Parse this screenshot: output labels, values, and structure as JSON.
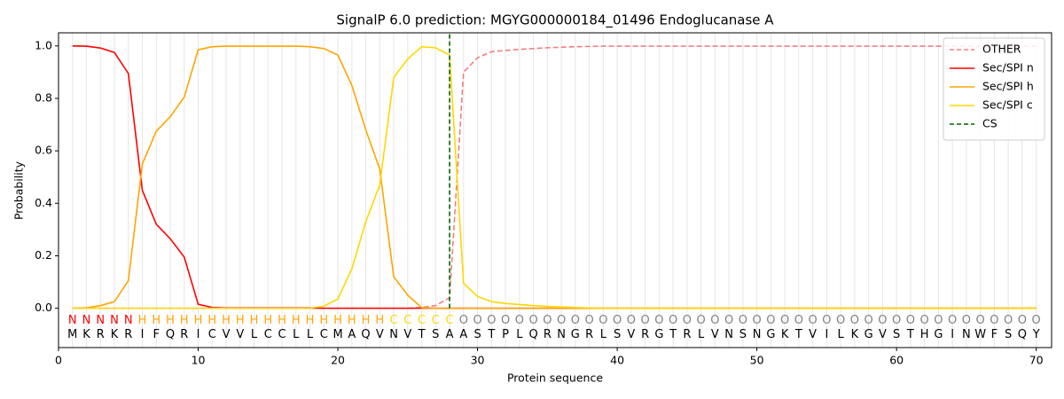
{
  "chart_data": {
    "type": "line",
    "title": "SignalP 6.0 prediction: MGYG000000184_01496 Endoglucanase A",
    "x_label": "Protein sequence",
    "y_label": "Probability",
    "x": [
      1,
      2,
      3,
      4,
      5,
      6,
      7,
      8,
      9,
      10,
      11,
      12,
      13,
      14,
      15,
      16,
      17,
      18,
      19,
      20,
      21,
      22,
      23,
      24,
      25,
      26,
      27,
      28,
      29,
      30,
      31,
      32,
      33,
      34,
      35,
      36,
      37,
      38,
      39,
      40,
      41,
      42,
      43,
      44,
      45,
      46,
      47,
      48,
      49,
      50,
      51,
      52,
      53,
      54,
      55,
      56,
      57,
      58,
      59,
      60,
      61,
      62,
      63,
      64,
      65,
      66,
      67,
      68,
      69,
      70
    ],
    "sequence": [
      "M",
      "K",
      "R",
      "K",
      "R",
      "I",
      "F",
      "Q",
      "R",
      "I",
      "C",
      "V",
      "V",
      "L",
      "C",
      "C",
      "L",
      "L",
      "C",
      "M",
      "A",
      "Q",
      "V",
      "N",
      "V",
      "T",
      "S",
      "A",
      "A",
      "S",
      "T",
      "P",
      "L",
      "Q",
      "R",
      "N",
      "G",
      "R",
      "L",
      "S",
      "V",
      "R",
      "G",
      "T",
      "R",
      "L",
      "V",
      "N",
      "S",
      "N",
      "G",
      "K",
      "T",
      "V",
      "I",
      "L",
      "K",
      "G",
      "V",
      "S",
      "T",
      "H",
      "G",
      "I",
      "N",
      "W",
      "F",
      "S",
      "Q",
      "Y"
    ],
    "regions": [
      "N",
      "N",
      "N",
      "N",
      "N",
      "H",
      "H",
      "H",
      "H",
      "H",
      "H",
      "H",
      "H",
      "H",
      "H",
      "H",
      "H",
      "H",
      "H",
      "H",
      "H",
      "H",
      "H",
      "C",
      "C",
      "C",
      "C",
      "C",
      "O",
      "O",
      "O",
      "O",
      "O",
      "O",
      "O",
      "O",
      "O",
      "O",
      "O",
      "O",
      "O",
      "O",
      "O",
      "O",
      "O",
      "O",
      "O",
      "O",
      "O",
      "O",
      "O",
      "O",
      "O",
      "O",
      "O",
      "O",
      "O",
      "O",
      "O",
      "O",
      "O",
      "O",
      "O",
      "O",
      "O",
      "O",
      "O",
      "O",
      "O",
      "O"
    ],
    "region_colors": {
      "N": "#ff0000",
      "H": "#ffa500",
      "C": "#ffd700",
      "O": "#808080"
    },
    "series": [
      {
        "name": "OTHER",
        "color": "#f08080",
        "dashed": true,
        "values": [
          0,
          0,
          0,
          0,
          0,
          0,
          0,
          0,
          0,
          0,
          0,
          0,
          0,
          0,
          0,
          0,
          0,
          0,
          0,
          0,
          0,
          0,
          0,
          0,
          0,
          0.003,
          0.01,
          0.04,
          0.9,
          0.955,
          0.978,
          0.983,
          0.987,
          0.99,
          0.993,
          0.995,
          0.997,
          0.998,
          0.999,
          0.999,
          0.999,
          0.999,
          0.999,
          0.999,
          0.999,
          0.999,
          0.999,
          0.999,
          0.999,
          0.999,
          0.999,
          0.999,
          0.999,
          0.999,
          0.999,
          0.999,
          0.999,
          0.999,
          0.999,
          0.999,
          0.999,
          0.999,
          0.999,
          0.999,
          0.999,
          0.999,
          0.999,
          0.999,
          0.999,
          0.999
        ]
      },
      {
        "name": "Sec/SPI n",
        "color": "#ff0000",
        "dashed": false,
        "values": [
          1.0,
          0.999,
          0.992,
          0.975,
          0.895,
          0.45,
          0.32,
          0.265,
          0.195,
          0.015,
          0.003,
          0.001,
          0.001,
          0.001,
          0.001,
          0.001,
          0.001,
          0.001,
          0,
          0,
          0,
          0,
          0,
          0,
          0,
          0,
          0,
          0,
          0,
          0,
          0,
          0,
          0,
          0,
          0,
          0,
          0,
          0,
          0,
          0,
          0,
          0,
          0,
          0,
          0,
          0,
          0,
          0,
          0,
          0,
          0,
          0,
          0,
          0,
          0,
          0,
          0,
          0,
          0,
          0,
          0,
          0,
          0,
          0,
          0,
          0,
          0,
          0,
          0,
          0
        ]
      },
      {
        "name": "Sec/SPI h",
        "color": "#ffa500",
        "dashed": false,
        "values": [
          0,
          0.002,
          0.01,
          0.025,
          0.105,
          0.55,
          0.675,
          0.73,
          0.805,
          0.985,
          0.997,
          0.999,
          0.999,
          0.999,
          0.999,
          0.999,
          0.999,
          0.997,
          0.99,
          0.965,
          0.85,
          0.68,
          0.53,
          0.12,
          0.05,
          0.002,
          0,
          0,
          0,
          0,
          0,
          0,
          0,
          0,
          0,
          0,
          0,
          0,
          0,
          0,
          0,
          0,
          0,
          0,
          0,
          0,
          0,
          0,
          0,
          0,
          0,
          0,
          0,
          0,
          0,
          0,
          0,
          0,
          0,
          0,
          0,
          0,
          0,
          0,
          0,
          0,
          0,
          0,
          0,
          0
        ]
      },
      {
        "name": "Sec/SPI c",
        "color": "#ffd700",
        "dashed": false,
        "values": [
          0,
          0,
          0,
          0,
          0,
          0,
          0,
          0,
          0,
          0,
          0,
          0,
          0,
          0,
          0,
          0,
          0,
          0,
          0.008,
          0.035,
          0.15,
          0.33,
          0.47,
          0.88,
          0.95,
          0.997,
          0.993,
          0.965,
          0.095,
          0.045,
          0.025,
          0.018,
          0.014,
          0.01,
          0.007,
          0.005,
          0.003,
          0.001,
          0,
          0,
          0,
          0,
          0,
          0,
          0,
          0,
          0,
          0,
          0,
          0,
          0,
          0,
          0,
          0,
          0,
          0,
          0,
          0,
          0,
          0,
          0,
          0,
          0,
          0,
          0,
          0,
          0,
          0,
          0,
          0
        ]
      }
    ],
    "cs": {
      "name": "CS",
      "color": "#006400",
      "x": 28
    },
    "xlim": [
      0,
      71.1
    ],
    "ylim": [
      -0.15,
      1.05
    ],
    "xticks": [
      0,
      10,
      20,
      30,
      40,
      50,
      60,
      70
    ],
    "yticks": [
      {
        "value": 0,
        "label": "0.0"
      },
      0.2,
      0.4,
      0.6,
      0.8,
      {
        "value": 1,
        "label": "1.0"
      }
    ],
    "position_grid": true,
    "legend": "upper right"
  }
}
